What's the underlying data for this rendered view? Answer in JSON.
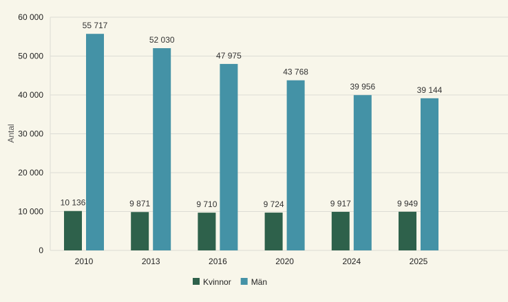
{
  "chart_data": {
    "type": "bar",
    "title": "",
    "xlabel": "",
    "ylabel": "Antal",
    "ylim": [
      0,
      60000
    ],
    "yticks": [
      0,
      10000,
      20000,
      30000,
      40000,
      50000,
      60000
    ],
    "ytick_labels": [
      "0",
      "10 000",
      "20 000",
      "30 000",
      "40 000",
      "50 000",
      "60 000"
    ],
    "grid": true,
    "legend_position": "bottom",
    "categories": [
      "2010",
      "2013",
      "2016",
      "2020",
      "2024",
      "2025"
    ],
    "series": [
      {
        "name": "Kvinnor",
        "color": "#2e614b",
        "values": [
          10136,
          9871,
          9710,
          9724,
          9917,
          9949
        ],
        "labels": [
          "10 136",
          "9 871",
          "9 710",
          "9 724",
          "9 917",
          "9 949"
        ]
      },
      {
        "name": "Män",
        "color": "#4492a6",
        "values": [
          55717,
          52030,
          47975,
          43768,
          39956,
          39144
        ],
        "labels": [
          "55 717",
          "52 030",
          "47 975",
          "43 768",
          "39 956",
          "39 144"
        ]
      }
    ]
  }
}
